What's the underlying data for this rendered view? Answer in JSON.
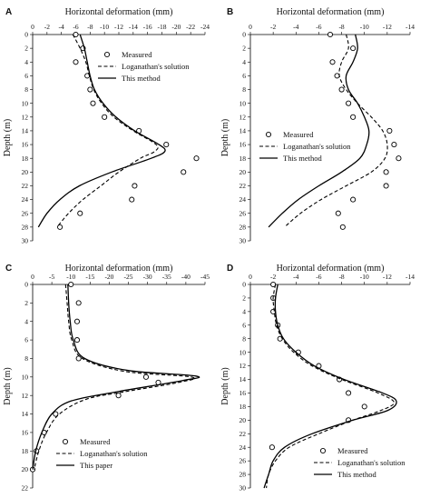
{
  "chart_data": [
    {
      "panel": "A",
      "type": "line",
      "xlabel": "Horizontal deformation (mm)",
      "ylabel": "Depth (m)",
      "xlim": [
        0,
        -24
      ],
      "ylim": [
        0,
        30
      ],
      "xticks": [
        0,
        -2,
        -4,
        -6,
        -8,
        -10,
        -12,
        -14,
        -16,
        -18,
        -20,
        -22,
        -24
      ],
      "yticks": [
        0,
        2,
        4,
        6,
        8,
        10,
        12,
        14,
        16,
        18,
        20,
        22,
        24,
        26,
        28,
        30
      ],
      "legend_position": "top-right",
      "series": [
        {
          "name": "Measured",
          "kind": "markers",
          "points": [
            [
              -6,
              0
            ],
            [
              -7,
              2
            ],
            [
              -6,
              4
            ],
            [
              -7.6,
              6
            ],
            [
              -8,
              8
            ],
            [
              -8.4,
              10
            ],
            [
              -10,
              12
            ],
            [
              -14.8,
              14
            ],
            [
              -18.6,
              16
            ],
            [
              -22.8,
              18
            ],
            [
              -21,
              20
            ],
            [
              -14.2,
              22
            ],
            [
              -13.8,
              24
            ],
            [
              -6.6,
              26
            ],
            [
              -3.8,
              28
            ]
          ]
        },
        {
          "name": "Loganathan's solution",
          "kind": "dashed",
          "points": [
            [
              -5.6,
              0
            ],
            [
              -6.6,
              2
            ],
            [
              -7.4,
              4
            ],
            [
              -7.9,
              6
            ],
            [
              -8.5,
              8
            ],
            [
              -9.6,
              10
            ],
            [
              -11.3,
              12
            ],
            [
              -14,
              14
            ],
            [
              -17.2,
              16
            ],
            [
              -17,
              17
            ],
            [
              -15,
              18
            ],
            [
              -12,
              20
            ],
            [
              -9.5,
              22
            ],
            [
              -7,
              24
            ],
            [
              -5,
              26
            ],
            [
              -3.4,
              28
            ]
          ]
        },
        {
          "name": "This method",
          "kind": "solid",
          "points": [
            [
              -6.6,
              0
            ],
            [
              -7.2,
              2
            ],
            [
              -7.6,
              4
            ],
            [
              -8,
              6
            ],
            [
              -8.6,
              8
            ],
            [
              -9.8,
              10
            ],
            [
              -11.6,
              12
            ],
            [
              -14.2,
              14
            ],
            [
              -17.6,
              16
            ],
            [
              -18.4,
              17
            ],
            [
              -16.5,
              18
            ],
            [
              -11,
              20
            ],
            [
              -6.5,
              22
            ],
            [
              -3.8,
              24
            ],
            [
              -2,
              26
            ],
            [
              -0.8,
              28
            ]
          ]
        }
      ]
    },
    {
      "panel": "B",
      "type": "line",
      "xlabel": "Horizontal deformation (mm)",
      "ylabel": "Depth (m)",
      "xlim": [
        0,
        -14
      ],
      "ylim": [
        0,
        30
      ],
      "xticks": [
        0,
        -2,
        -4,
        -6,
        -8,
        -10,
        -12,
        -14
      ],
      "yticks": [
        0,
        2,
        4,
        6,
        8,
        10,
        12,
        14,
        16,
        18,
        20,
        22,
        24,
        26,
        28,
        30
      ],
      "legend_position": "middle-left",
      "series": [
        {
          "name": "Measured",
          "kind": "markers",
          "points": [
            [
              -7,
              0
            ],
            [
              -9,
              2
            ],
            [
              -7.2,
              4
            ],
            [
              -7.6,
              6
            ],
            [
              -8,
              8
            ],
            [
              -8.6,
              10
            ],
            [
              -9,
              12
            ],
            [
              -12.2,
              14
            ],
            [
              -12.6,
              16
            ],
            [
              -13,
              18
            ],
            [
              -11.9,
              20
            ],
            [
              -11.9,
              22
            ],
            [
              -9,
              24
            ],
            [
              -7.7,
              26
            ],
            [
              -8.1,
              28
            ]
          ]
        },
        {
          "name": "Loganathan's solution",
          "kind": "dashed",
          "points": [
            [
              -8.4,
              0
            ],
            [
              -8.6,
              2
            ],
            [
              -8,
              4
            ],
            [
              -7.8,
              6
            ],
            [
              -8.4,
              8
            ],
            [
              -9.4,
              10
            ],
            [
              -10.6,
              12
            ],
            [
              -11.6,
              14
            ],
            [
              -12,
              16
            ],
            [
              -11.8,
              18
            ],
            [
              -10.6,
              20
            ],
            [
              -8.4,
              22
            ],
            [
              -6.2,
              24
            ],
            [
              -4.4,
              26
            ],
            [
              -3,
              28
            ]
          ]
        },
        {
          "name": "This method",
          "kind": "solid",
          "points": [
            [
              -9.2,
              0
            ],
            [
              -9.4,
              2
            ],
            [
              -9,
              4
            ],
            [
              -8.4,
              6
            ],
            [
              -8.6,
              8
            ],
            [
              -9.4,
              10
            ],
            [
              -10,
              12
            ],
            [
              -10.4,
              14
            ],
            [
              -10.2,
              16
            ],
            [
              -9.6,
              18
            ],
            [
              -8,
              20
            ],
            [
              -6,
              22
            ],
            [
              -4.2,
              24
            ],
            [
              -2.8,
              26
            ],
            [
              -1.6,
              28
            ]
          ]
        }
      ]
    },
    {
      "panel": "C",
      "type": "line",
      "xlabel": "Horizontal deformation (mm)",
      "ylabel": "Depth (m)",
      "xlim": [
        0,
        -45
      ],
      "ylim": [
        0,
        22
      ],
      "xticks": [
        0,
        -5,
        -10,
        -15,
        -20,
        -25,
        -30,
        -35,
        -40,
        -45
      ],
      "yticks": [
        0,
        2,
        4,
        6,
        8,
        10,
        12,
        14,
        16,
        18,
        20,
        22
      ],
      "legend_position": "bottom-left",
      "series": [
        {
          "name": "Measured",
          "kind": "markers",
          "points": [
            [
              -10,
              0
            ],
            [
              -12,
              2
            ],
            [
              -11.6,
              4
            ],
            [
              -11.6,
              6
            ],
            [
              -12,
              8
            ],
            [
              -29.6,
              10
            ],
            [
              -32.8,
              10.6
            ],
            [
              -22.4,
              12
            ],
            [
              -6,
              14
            ],
            [
              -3,
              16
            ],
            [
              -1,
              18
            ],
            [
              0,
              20
            ]
          ]
        },
        {
          "name": "Loganathan's solution",
          "kind": "dashed",
          "points": [
            [
              -8.6,
              0
            ],
            [
              -9,
              2
            ],
            [
              -9.4,
              4
            ],
            [
              -10.2,
              6
            ],
            [
              -13,
              8
            ],
            [
              -24,
              9.4
            ],
            [
              -41.4,
              10
            ],
            [
              -38,
              10.6
            ],
            [
              -24,
              11.6
            ],
            [
              -14,
              12.4
            ],
            [
              -7,
              14
            ],
            [
              -3.6,
              16
            ],
            [
              -1.6,
              18
            ],
            [
              -0.4,
              20
            ]
          ]
        },
        {
          "name": "This paper",
          "kind": "solid",
          "points": [
            [
              -9.2,
              0
            ],
            [
              -9.4,
              2
            ],
            [
              -9.8,
              4
            ],
            [
              -10.6,
              6
            ],
            [
              -13.6,
              8
            ],
            [
              -25,
              9.3
            ],
            [
              -42.6,
              9.9
            ],
            [
              -39,
              10.4
            ],
            [
              -22,
              11.6
            ],
            [
              -10,
              12.6
            ],
            [
              -5,
              14
            ],
            [
              -2.4,
              16
            ],
            [
              -0.8,
              18
            ],
            [
              0,
              20
            ]
          ]
        }
      ]
    },
    {
      "panel": "D",
      "type": "line",
      "xlabel": "Horizontal deformation (mm)",
      "ylabel": "Depth (m)",
      "xlim": [
        0,
        -14
      ],
      "ylim": [
        0,
        30
      ],
      "xticks": [
        0,
        -2,
        -4,
        -6,
        -8,
        -10,
        -12,
        -14
      ],
      "yticks": [
        0,
        2,
        4,
        6,
        8,
        10,
        12,
        14,
        16,
        18,
        20,
        22,
        24,
        26,
        28,
        30
      ],
      "legend_position": "bottom-right",
      "series": [
        {
          "name": "Measured",
          "kind": "markers",
          "points": [
            [
              -2,
              0
            ],
            [
              -2,
              2
            ],
            [
              -2,
              4
            ],
            [
              -2.4,
              6
            ],
            [
              -2.6,
              8
            ],
            [
              -4.2,
              10
            ],
            [
              -6,
              12
            ],
            [
              -7.8,
              14
            ],
            [
              -8.6,
              16
            ],
            [
              -10,
              18
            ],
            [
              -8.6,
              20
            ],
            [
              -1.9,
              24
            ]
          ]
        },
        {
          "name": "Loganathan's solution",
          "kind": "dashed",
          "points": [
            [
              -2.2,
              0
            ],
            [
              -2,
              2
            ],
            [
              -2.1,
              4
            ],
            [
              -2.3,
              6
            ],
            [
              -2.8,
              8
            ],
            [
              -3.8,
              10
            ],
            [
              -5.4,
              12
            ],
            [
              -8,
              14
            ],
            [
              -11.2,
              16
            ],
            [
              -12.6,
              17.4
            ],
            [
              -11.4,
              18.6
            ],
            [
              -9,
              20
            ],
            [
              -6,
              22
            ],
            [
              -3.4,
              24
            ],
            [
              -2.2,
              26
            ],
            [
              -1.6,
              28
            ],
            [
              -1.4,
              30
            ]
          ]
        },
        {
          "name": "This method",
          "kind": "solid",
          "points": [
            [
              -2.4,
              0
            ],
            [
              -2.2,
              2
            ],
            [
              -2.2,
              4
            ],
            [
              -2.4,
              6
            ],
            [
              -2.9,
              8
            ],
            [
              -4,
              10
            ],
            [
              -5.6,
              12
            ],
            [
              -8.2,
              14
            ],
            [
              -11.6,
              16
            ],
            [
              -12.8,
              17.2
            ],
            [
              -12,
              18.6
            ],
            [
              -9,
              20
            ],
            [
              -5.4,
              22
            ],
            [
              -3,
              24
            ],
            [
              -2,
              26
            ],
            [
              -1.6,
              28
            ],
            [
              -1.2,
              30
            ]
          ]
        }
      ]
    }
  ]
}
